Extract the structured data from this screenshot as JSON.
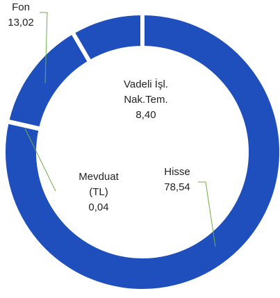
{
  "chart_data": {
    "type": "donut",
    "categories": [
      "Hisse",
      "Mevduat\n(TL)",
      "Fon",
      "Vadeli İşl.\nNak.Tem."
    ],
    "values": [
      78.54,
      0.04,
      13.02,
      8.4
    ],
    "value_labels": [
      "78,54",
      "0,04",
      "13,02",
      "8,40"
    ],
    "color": "#1f4fbd",
    "leader_color": "#70ad47"
  }
}
